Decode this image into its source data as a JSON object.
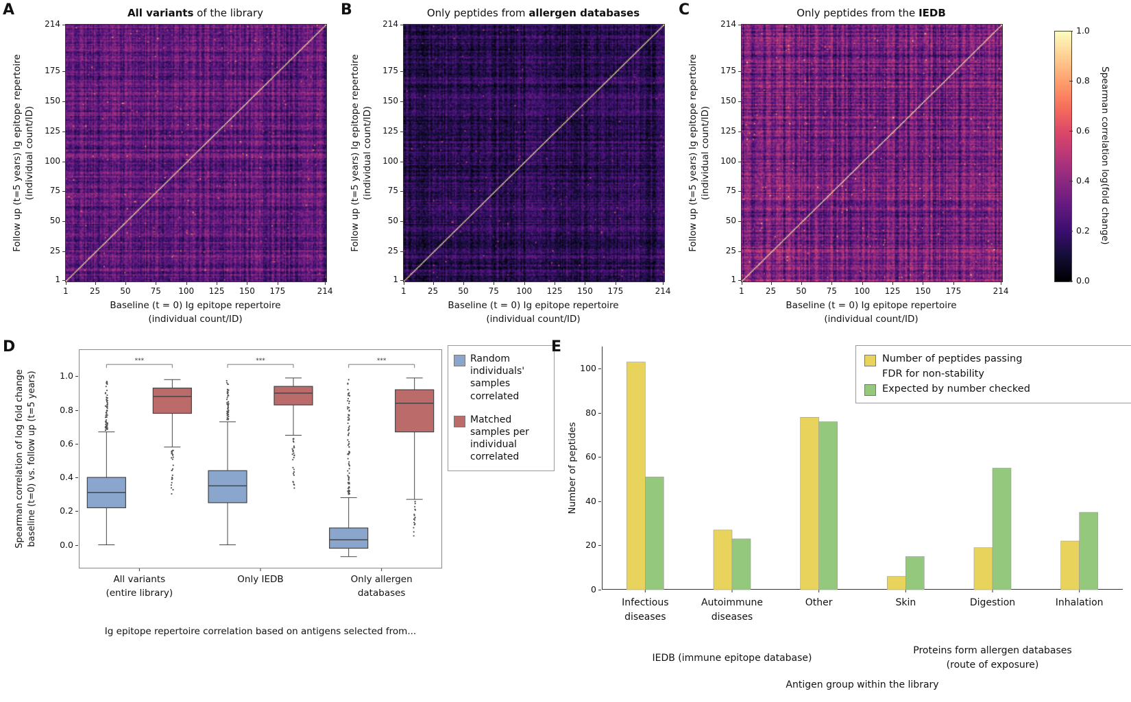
{
  "panels": {
    "a": {
      "letter": "A"
    },
    "b": {
      "letter": "B"
    },
    "c": {
      "letter": "C"
    },
    "d": {
      "letter": "D"
    },
    "e": {
      "letter": "E"
    }
  },
  "colors": {
    "box_blue": "#8ba6cd",
    "box_red": "#bc6b6b",
    "bar_yellow": "#e8d35c",
    "bar_green": "#93c87d"
  },
  "chart_data": [
    {
      "type": "heatmap",
      "panel": "A",
      "title_pre": "",
      "title_bold": "All variants",
      "title_post": " of the library",
      "xlabel": [
        "Baseline (t = 0) Ig epitope repertoire",
        "(individual count/ID)"
      ],
      "ylabel": [
        "Follow up (t=5 years) Ig epitope repertoire",
        "(individual count/ID)"
      ],
      "n": 214,
      "ticks": [
        1,
        25,
        50,
        75,
        100,
        125,
        150,
        175,
        214
      ],
      "colormap": "magma",
      "value_range": [
        0,
        1
      ],
      "diagonal_value": 1.0,
      "offdiagonal_mean": 0.3,
      "render": {
        "seed": 11,
        "base": 0.3,
        "noise": 0.17,
        "structure": 0.09,
        "speckle": 0.004
      }
    },
    {
      "type": "heatmap",
      "panel": "B",
      "title_pre": "Only peptides from ",
      "title_bold": "allergen databases",
      "title_post": "",
      "xlabel": [
        "Baseline (t = 0) Ig epitope repertoire",
        "(individual count/ID)"
      ],
      "ylabel": [
        "Follow up (t=5 years) Ig epitope repertoire",
        "(individual count/ID)"
      ],
      "n": 214,
      "ticks": [
        1,
        25,
        50,
        75,
        100,
        125,
        150,
        175,
        214
      ],
      "colormap": "magma",
      "value_range": [
        0,
        1
      ],
      "diagonal_value": 1.0,
      "offdiagonal_mean": 0.15,
      "render": {
        "seed": 22,
        "base": 0.16,
        "noise": 0.15,
        "structure": 0.07,
        "speckle": 0.003
      }
    },
    {
      "type": "heatmap",
      "panel": "C",
      "title_pre": "Only peptides from the ",
      "title_bold": "IEDB",
      "title_post": "",
      "xlabel": [
        "Baseline (t = 0) Ig epitope repertoire",
        "(individual count/ID)"
      ],
      "ylabel": [
        "Follow up (t=5 years) Ig epitope repertoire",
        "(individual count/ID)"
      ],
      "n": 214,
      "ticks": [
        1,
        25,
        50,
        75,
        100,
        125,
        150,
        175,
        214
      ],
      "colormap": "magma",
      "value_range": [
        0,
        1
      ],
      "diagonal_value": 1.0,
      "offdiagonal_mean": 0.33,
      "render": {
        "seed": 33,
        "base": 0.33,
        "noise": 0.19,
        "structure": 0.11,
        "speckle": 0.005
      }
    },
    {
      "type": "colorbar",
      "label": "Spearman correlation log(fold change)",
      "ticks": [
        0.0,
        0.2,
        0.4,
        0.6,
        0.8,
        1.0
      ],
      "range": [
        0,
        1
      ],
      "colormap": "magma"
    },
    {
      "type": "boxplot",
      "panel": "D",
      "ylabel": [
        "Spearman correlation of log fold change",
        "baseline (t=0) vs. follow up (t=5 years)"
      ],
      "xlabel": "Ig epitope repertoire correlation based on antigens selected from...",
      "y_ticks": [
        "0.0",
        "0.2",
        "0.4",
        "0.6",
        "0.8",
        "1.0"
      ],
      "ylim": [
        -0.14,
        1.16
      ],
      "categories": [
        [
          "All variants",
          "(entire library)"
        ],
        [
          "Only IEDB"
        ],
        [
          "Only allergen",
          "databases"
        ]
      ],
      "significance": "***",
      "sig_y": 1.07,
      "series": [
        {
          "name": "Random individuals' samples correlated",
          "legend_lines": [
            "Random",
            "individuals'",
            "samples",
            "correlated"
          ],
          "color": "#8ba6cd",
          "boxes": [
            {
              "whislo": 0.0,
              "q1": 0.22,
              "med": 0.31,
              "q3": 0.4,
              "whishi": 0.67,
              "fliers": {
                "above": {
                  "min": 0.68,
                  "max": 0.98,
                  "count": 70
                }
              }
            },
            {
              "whislo": 0.0,
              "q1": 0.25,
              "med": 0.35,
              "q3": 0.44,
              "whishi": 0.73,
              "fliers": {
                "above": {
                  "min": 0.74,
                  "max": 0.98,
                  "count": 45
                }
              }
            },
            {
              "whislo": -0.07,
              "q1": -0.02,
              "med": 0.03,
              "q3": 0.1,
              "whishi": 0.28,
              "fliers": {
                "above": {
                  "min": 0.3,
                  "max": 0.98,
                  "count": 90
                }
              }
            }
          ]
        },
        {
          "name": "Matched samples per individual correlated",
          "legend_lines": [
            "Matched",
            "samples per",
            "individual",
            "correlated"
          ],
          "color": "#bc6b6b",
          "boxes": [
            {
              "whislo": 0.58,
              "q1": 0.78,
              "med": 0.88,
              "q3": 0.93,
              "whishi": 0.98,
              "fliers": {
                "below": {
                  "min": 0.3,
                  "max": 0.56,
                  "count": 28
                }
              }
            },
            {
              "whislo": 0.65,
              "q1": 0.83,
              "med": 0.9,
              "q3": 0.94,
              "whishi": 0.99,
              "fliers": {
                "below": {
                  "min": 0.33,
                  "max": 0.63,
                  "count": 32
                }
              }
            },
            {
              "whislo": 0.27,
              "q1": 0.67,
              "med": 0.84,
              "q3": 0.92,
              "whishi": 0.99,
              "fliers": {
                "below": {
                  "min": 0.05,
                  "max": 0.26,
                  "count": 18
                }
              }
            }
          ]
        }
      ]
    },
    {
      "type": "bar",
      "panel": "E",
      "ylabel": "Number of peptides",
      "xlabel": "Antigen group within the library",
      "y_ticks": [
        0,
        20,
        40,
        60,
        80,
        100
      ],
      "ylim": [
        0,
        110
      ],
      "categories": [
        [
          "Infectious",
          "diseases"
        ],
        [
          "Autoimmune",
          "diseases"
        ],
        [
          "Other"
        ],
        [
          "Skin"
        ],
        [
          "Digestion"
        ],
        [
          "Inhalation"
        ]
      ],
      "group_labels": [
        {
          "lines": [
            "IEDB (immune epitope database)"
          ],
          "center_frac": 0.25
        },
        {
          "lines": [
            "Proteins form allergen  databases",
            "(route of exposure)"
          ],
          "center_frac": 0.75
        }
      ],
      "series": [
        {
          "name": "Number of  peptides passing FDR for non-stability",
          "color": "#e8d35c",
          "values": [
            103,
            27,
            78,
            6,
            19,
            22
          ]
        },
        {
          "name": "Expected by number checked",
          "color": "#93c87d",
          "values": [
            51,
            23,
            76,
            15,
            55,
            35
          ]
        }
      ],
      "legend": [
        {
          "lines": [
            "Number of  peptides passing",
            "FDR for non-stability"
          ]
        },
        {
          "lines": [
            "Expected by number checked"
          ]
        }
      ]
    }
  ]
}
